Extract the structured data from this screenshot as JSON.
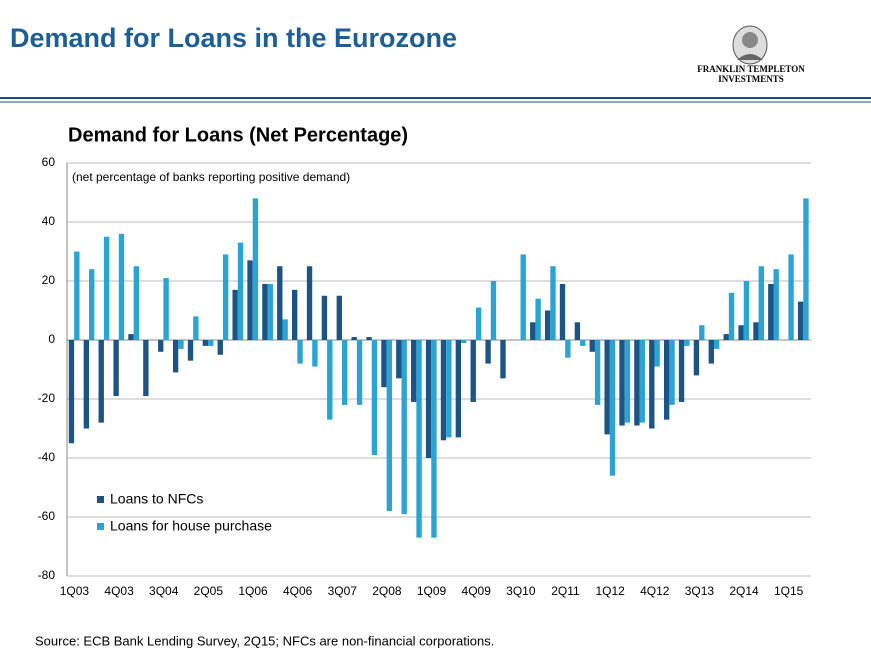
{
  "header": {
    "title": "Demand for Loans in the Eurozone",
    "logo_line1": "FRANKLIN TEMPLETON",
    "logo_line2": "INVESTMENTS"
  },
  "source": "Source: ECB Bank Lending Survey, 2Q15; NFCs are non-financial corporations.",
  "chart_data": {
    "type": "bar",
    "title": "Demand for Loans (Net Percentage)",
    "annotation": "(net percentage of banks reporting positive demand)",
    "categories": [
      "1Q03",
      null,
      null,
      "4Q03",
      null,
      null,
      "3Q04",
      null,
      null,
      "2Q05",
      null,
      null,
      "1Q06",
      null,
      null,
      "4Q06",
      null,
      null,
      "3Q07",
      null,
      null,
      "2Q08",
      null,
      null,
      "1Q09",
      null,
      null,
      "4Q09",
      null,
      null,
      "3Q10",
      null,
      null,
      "2Q11",
      null,
      null,
      "1Q12",
      null,
      null,
      "4Q12",
      null,
      null,
      "3Q13",
      null,
      null,
      "2Q14",
      null,
      null,
      "1Q15",
      null
    ],
    "series": [
      {
        "name": "Loans to NFCs",
        "color": "#1b5485",
        "values": [
          -35,
          -30,
          -28,
          -19,
          2,
          -19,
          -4,
          -11,
          -7,
          -2,
          -5,
          17,
          27,
          19,
          25,
          17,
          25,
          15,
          15,
          1,
          1,
          -16,
          -13,
          -21,
          -40,
          -34,
          -33,
          -21,
          -8,
          -13,
          0,
          6,
          10,
          19,
          6,
          -4,
          -32,
          -29,
          -29,
          -30,
          -27,
          -21,
          -12,
          -8,
          2,
          5,
          6,
          19,
          0,
          13
        ]
      },
      {
        "name": "Loans for house purchase",
        "color": "#2aa3d5",
        "values": [
          30,
          24,
          35,
          36,
          25,
          0,
          21,
          -3,
          8,
          -2,
          29,
          33,
          48,
          19,
          7,
          -8,
          -9,
          -27,
          -22,
          -22,
          -39,
          -58,
          -59,
          -67,
          -67,
          -33,
          -1,
          11,
          20,
          0,
          29,
          14,
          25,
          -6,
          -2,
          -22,
          -46,
          -28,
          -28,
          -9,
          -22,
          -2,
          5,
          -3,
          16,
          20,
          25,
          24,
          29,
          48
        ]
      }
    ],
    "ylim": [
      -80,
      60
    ],
    "yticks": [
      -80,
      -60,
      -40,
      -20,
      0,
      20,
      40,
      60
    ],
    "grid": true,
    "legend": "lower left"
  }
}
